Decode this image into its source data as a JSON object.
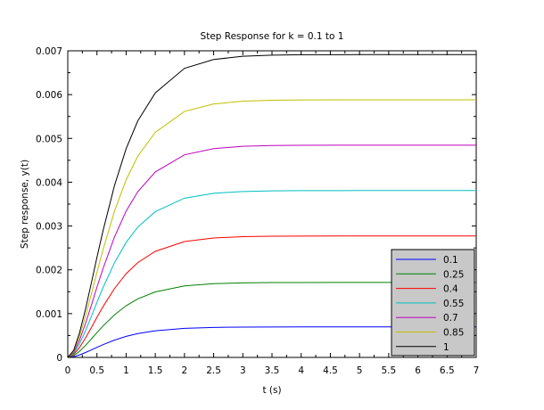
{
  "chart_data": {
    "type": "line",
    "title": "Step Response for k = 0.1 to 1",
    "xlabel": "t (s)",
    "ylabel": "Step response, y(t)",
    "xlim": [
      0,
      7
    ],
    "ylim": [
      0,
      0.007
    ],
    "x_ticks": [
      "0",
      "0.5",
      "1",
      "1.5",
      "2",
      "2.5",
      "3",
      "3.5",
      "4",
      "4.5",
      "5",
      "5.5",
      "6",
      "6.5",
      "7"
    ],
    "y_ticks": [
      "0",
      "0.001",
      "0.002",
      "0.003",
      "0.004",
      "0.005",
      "0.006",
      "0.007"
    ],
    "grid": false,
    "legend_position": "bottom-right",
    "x": [
      0,
      0.1,
      0.2,
      0.3,
      0.4,
      0.5,
      0.6,
      0.8,
      1.0,
      1.2,
      1.5,
      2.0,
      2.5,
      3.0,
      3.5,
      4.0,
      5.0,
      6.0,
      7.0
    ],
    "series": [
      {
        "name": "0.1",
        "color": "#0000ff",
        "values": [
          0,
          1.6e-05,
          5.6e-05,
          0.000109,
          0.000169,
          0.00023,
          0.000289,
          0.000395,
          0.00048,
          0.000544,
          0.000609,
          0.000665,
          0.000685,
          0.000693,
          0.000695,
          0.000696,
          0.000697,
          0.000697,
          0.000697
        ]
      },
      {
        "name": "0.25",
        "color": "#008000",
        "values": [
          0,
          4e-05,
          0.000138,
          0.000268,
          0.000415,
          0.000566,
          0.000711,
          0.000971,
          0.00118,
          0.001337,
          0.001496,
          0.001634,
          0.001684,
          0.001702,
          0.001708,
          0.00171,
          0.001712,
          0.001712,
          0.001712
        ]
      },
      {
        "name": "0.4",
        "color": "#ff0000",
        "values": [
          0,
          6.3e-05,
          0.000223,
          0.000434,
          0.000672,
          0.000916,
          0.001151,
          0.001572,
          0.001911,
          0.002165,
          0.002422,
          0.002646,
          0.002727,
          0.002757,
          0.002767,
          0.00277,
          0.002772,
          0.002772,
          0.002772
        ]
      },
      {
        "name": "0.55",
        "color": "#00bfbf",
        "values": [
          0,
          8.7e-05,
          0.000306,
          0.000596,
          0.000923,
          0.001259,
          0.001582,
          0.00216,
          0.002626,
          0.002975,
          0.003328,
          0.003636,
          0.003747,
          0.003788,
          0.003802,
          0.003807,
          0.003809,
          0.003809,
          0.003809
        ]
      },
      {
        "name": "0.7",
        "color": "#bf00bf",
        "values": [
          0,
          0.000111,
          0.000389,
          0.000758,
          0.001174,
          0.001602,
          0.002012,
          0.002748,
          0.003341,
          0.003785,
          0.004234,
          0.004626,
          0.004767,
          0.004819,
          0.004837,
          0.004844,
          0.004846,
          0.004846,
          0.004846
        ]
      },
      {
        "name": "0.85",
        "color": "#bfbf00",
        "values": [
          0,
          0.000134,
          0.000472,
          0.00092,
          0.001425,
          0.001944,
          0.002442,
          0.003336,
          0.004055,
          0.004594,
          0.005139,
          0.005615,
          0.005786,
          0.005849,
          0.005871,
          0.005879,
          0.005882,
          0.005882,
          0.005882
        ]
      },
      {
        "name": "1",
        "color": "#000000",
        "values": [
          0,
          0.000158,
          0.000555,
          0.001081,
          0.001675,
          0.002285,
          0.00287,
          0.003921,
          0.004766,
          0.0054,
          0.00604,
          0.0066,
          0.006801,
          0.006875,
          0.006901,
          0.00691,
          0.006913,
          0.006913,
          0.006913
        ]
      }
    ]
  }
}
